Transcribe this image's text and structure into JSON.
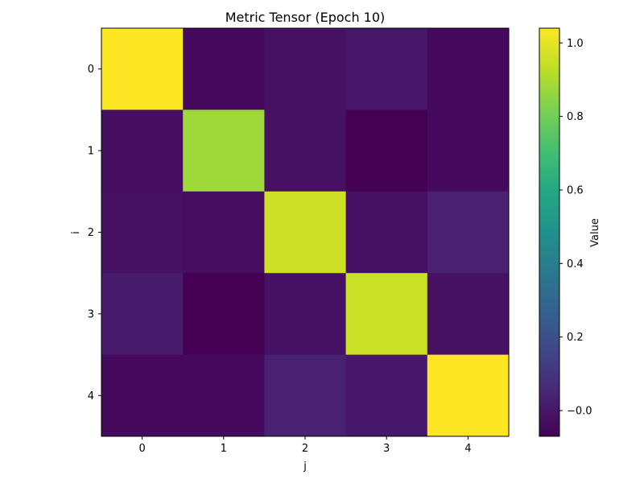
{
  "chart_data": {
    "type": "heatmap",
    "title": "Metric Tensor (Epoch 10)",
    "xlabel": "j",
    "ylabel": "i",
    "x_categories": [
      "0",
      "1",
      "2",
      "3",
      "4"
    ],
    "y_categories": [
      "0",
      "1",
      "2",
      "3",
      "4"
    ],
    "values": [
      [
        1.04,
        -0.04,
        -0.02,
        0.0,
        -0.04
      ],
      [
        -0.03,
        0.88,
        -0.02,
        -0.07,
        -0.04
      ],
      [
        -0.02,
        -0.03,
        0.96,
        -0.02,
        0.03
      ],
      [
        0.01,
        -0.07,
        -0.02,
        0.95,
        -0.02
      ],
      [
        -0.04,
        -0.04,
        0.03,
        0.0,
        1.04
      ]
    ],
    "colorbar": {
      "label": "Value",
      "range": [
        -0.07,
        1.04
      ],
      "ticks": [
        -0.0,
        0.2,
        0.4,
        0.6,
        0.8,
        1.0
      ],
      "tick_labels": [
        "−0.0",
        "0.2",
        "0.4",
        "0.6",
        "0.8",
        "1.0"
      ]
    },
    "colormap": "viridis"
  }
}
